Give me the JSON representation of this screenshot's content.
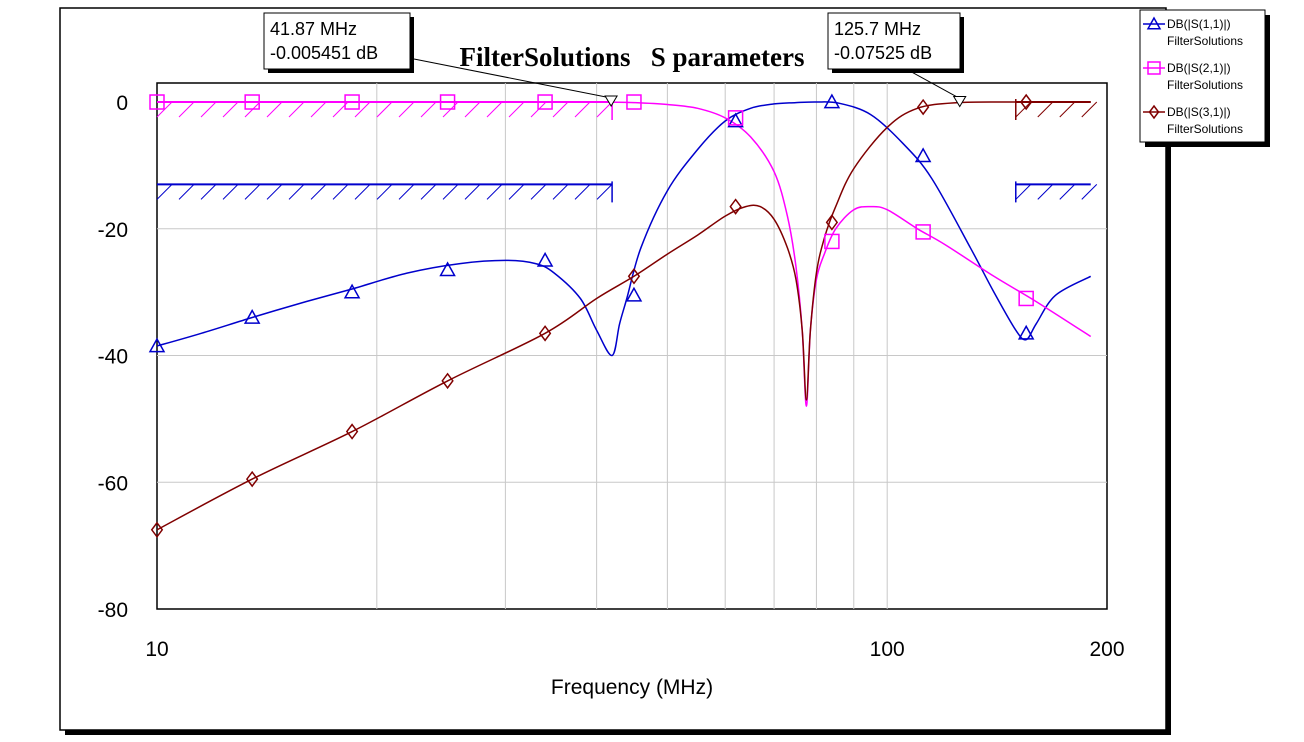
{
  "chart_data": {
    "type": "line",
    "title": "FilterSolutions   S parameters",
    "xlabel": "Frequency (MHz)",
    "ylabel": "",
    "xscale": "log",
    "xlim": [
      10,
      200
    ],
    "ylim": [
      -80,
      3
    ],
    "x_ticks": [
      {
        "v": 10,
        "label": "10"
      },
      {
        "v": 100,
        "label": "100"
      },
      {
        "v": 200,
        "label": "200"
      }
    ],
    "y_ticks": [
      {
        "v": 0,
        "label": "0"
      },
      {
        "v": -20,
        "label": "-20"
      },
      {
        "v": -40,
        "label": "-40"
      },
      {
        "v": -60,
        "label": "-60"
      },
      {
        "v": -80,
        "label": "-80"
      }
    ],
    "grid": true,
    "legend_position": "top-right, outside plot",
    "series": [
      {
        "name": "DB(|S(1,1)|)",
        "source": "FilterSolutions",
        "color": "#0000CC",
        "marker": "triangle",
        "x": [
          10,
          11.5,
          13.5,
          16,
          18.5,
          22,
          26,
          30,
          33,
          35,
          38,
          40,
          42,
          43,
          44,
          46,
          50,
          55,
          60,
          65,
          70,
          75,
          80,
          86,
          95,
          105,
          115,
          130,
          140,
          150,
          155,
          160,
          170,
          190
        ],
        "y": [
          -38.5,
          -36.5,
          -34,
          -31.5,
          -29.5,
          -27,
          -25.5,
          -25,
          -25.5,
          -27,
          -31,
          -36,
          -40,
          -35,
          -31,
          -23,
          -14,
          -7.5,
          -3,
          -1,
          -0.3,
          -0.1,
          0,
          -0.2,
          -2,
          -6.5,
          -12,
          -23,
          -30,
          -36,
          -37.5,
          -35,
          -30.5,
          -27.5
        ],
        "markers_x": [
          10,
          13.5,
          18.5,
          25,
          34,
          45,
          62,
          84,
          112,
          155
        ],
        "markers_y": [
          -38.5,
          -34,
          -30,
          -26.5,
          -25,
          -30.5,
          -3,
          0,
          -8.5,
          -36.5
        ]
      },
      {
        "name": "DB(|S(2,1)|)",
        "source": "FilterSolutions",
        "color": "#FF00FF",
        "marker": "square",
        "x": [
          10,
          20,
          30,
          40,
          45,
          50,
          55,
          60,
          65,
          70,
          73,
          75,
          76.5,
          77.5,
          78.5,
          80,
          82,
          85,
          90,
          95,
          100,
          110,
          120,
          140,
          160,
          190
        ],
        "y": [
          0,
          0,
          0,
          0,
          -0.1,
          -0.4,
          -1,
          -2.5,
          -5.5,
          -11,
          -18,
          -26,
          -36,
          -48,
          -36,
          -28,
          -24,
          -20,
          -17,
          -16.5,
          -17,
          -20,
          -22.5,
          -27.5,
          -31.5,
          -37
        ],
        "markers_x": [
          10,
          13.5,
          18.5,
          25,
          34,
          45,
          62,
          84,
          112,
          155
        ],
        "markers_y": [
          0,
          0,
          0,
          0,
          0,
          0,
          -2.5,
          -22,
          -20.5,
          -31
        ]
      },
      {
        "name": "DB(|S(3,1)|)",
        "source": "FilterSolutions",
        "color": "#800000",
        "marker": "diamond",
        "x": [
          10,
          13.5,
          18.5,
          25,
          34,
          40,
          45,
          50,
          55,
          60,
          64,
          67,
          70,
          73,
          75,
          76.5,
          77.5,
          78.5,
          80,
          82,
          85,
          90,
          100,
          110,
          125,
          150,
          190
        ],
        "y": [
          -67.5,
          -59.5,
          -52,
          -44,
          -36.5,
          -31,
          -27.5,
          -24,
          -21,
          -18,
          -16.5,
          -16.5,
          -18.5,
          -23,
          -28,
          -36,
          -47,
          -36,
          -27,
          -21.5,
          -16.5,
          -10.5,
          -4,
          -1,
          -0.1,
          0,
          0
        ],
        "markers_x": [
          10,
          13.5,
          18.5,
          25,
          34,
          45,
          62,
          84,
          112,
          155
        ],
        "markers_y": [
          -67.5,
          -59.5,
          -52,
          -44,
          -36.5,
          -27.5,
          -16.5,
          -19,
          -0.8,
          0
        ]
      }
    ],
    "masks": [
      {
        "color": "#FF00FF",
        "x": [
          10,
          42
        ],
        "y": 0
      },
      {
        "color": "#0000CC",
        "x": [
          10,
          42
        ],
        "y": -13
      },
      {
        "color": "#0000CC",
        "x": [
          150,
          190
        ],
        "y": -13
      },
      {
        "color": "#800000",
        "x": [
          150,
          190
        ],
        "y": 0
      }
    ],
    "markers": [
      {
        "x": 41.87,
        "y": -0.005451,
        "label_f": "41.87 MHz",
        "label_v": "-0.005451 dB"
      },
      {
        "x": 125.7,
        "y": -0.07525,
        "label_f": "125.7 MHz",
        "label_v": "-0.07525 dB"
      }
    ]
  }
}
